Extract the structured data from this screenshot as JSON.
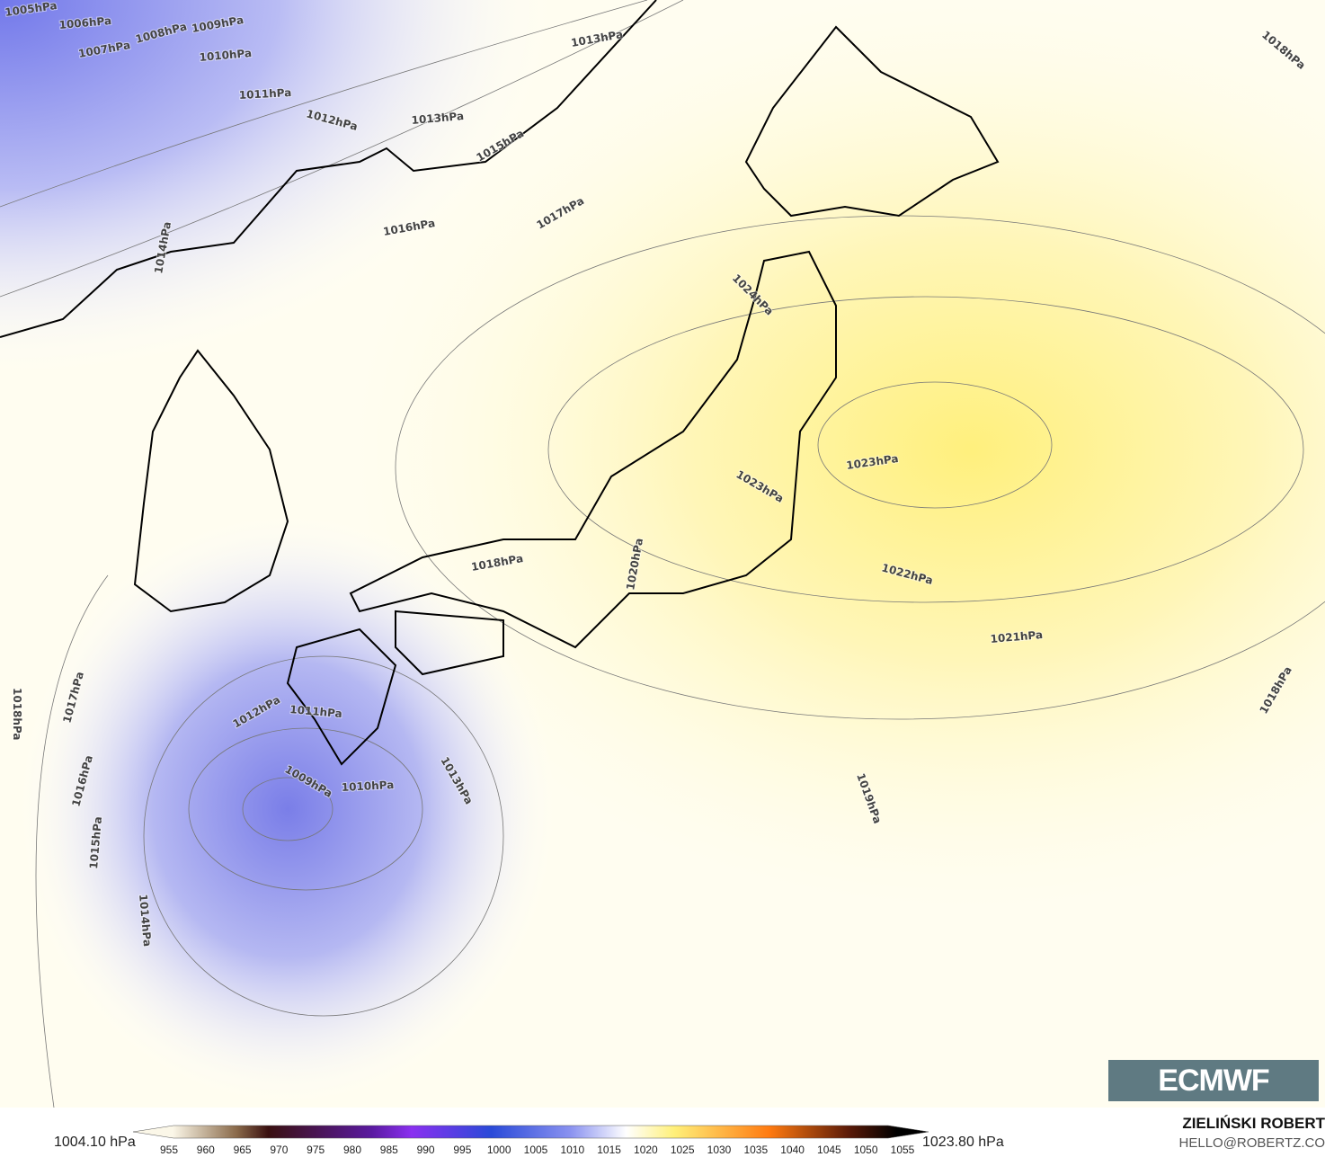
{
  "map": {
    "contour_labels": [
      "1005hPa",
      "1006hPa",
      "1007hPa",
      "1008hPa",
      "1009hPa",
      "1010hPa",
      "1011hPa",
      "1012hPa",
      "1013hPa",
      "1013hPa",
      "1015hPa",
      "1016hPa",
      "1017hPa",
      "1014hPa",
      "1024hPa",
      "1023hPa",
      "1023hPa",
      "1018hPa",
      "1020hPa",
      "1022hPa",
      "1021hPa",
      "1018hPa",
      "1018hPa",
      "1017hPa",
      "1016hPa",
      "1015hPa",
      "1014hPa",
      "1012hPa",
      "1011hPa",
      "1009hPa",
      "1010hPa",
      "1013hPa",
      "1019hPa",
      "1018hPa"
    ],
    "colors": {
      "low": "#6f73e8",
      "mid": "#ffffff",
      "high": "#fff07a",
      "land_line": "#000000"
    }
  },
  "legend": {
    "min_label": "1004.10 hPa",
    "max_label": "1023.80 hPa",
    "ticks": [
      "955",
      "960",
      "965",
      "970",
      "975",
      "980",
      "985",
      "990",
      "995",
      "1000",
      "1005",
      "1010",
      "1015",
      "1020",
      "1025",
      "1030",
      "1035",
      "1040",
      "1045",
      "1050",
      "1055"
    ]
  },
  "credit": {
    "author": "ZIELIŃSKI ROBERT",
    "email": "HELLO@ROBERTZ.CO"
  },
  "logo": {
    "text": "ECMWF"
  }
}
